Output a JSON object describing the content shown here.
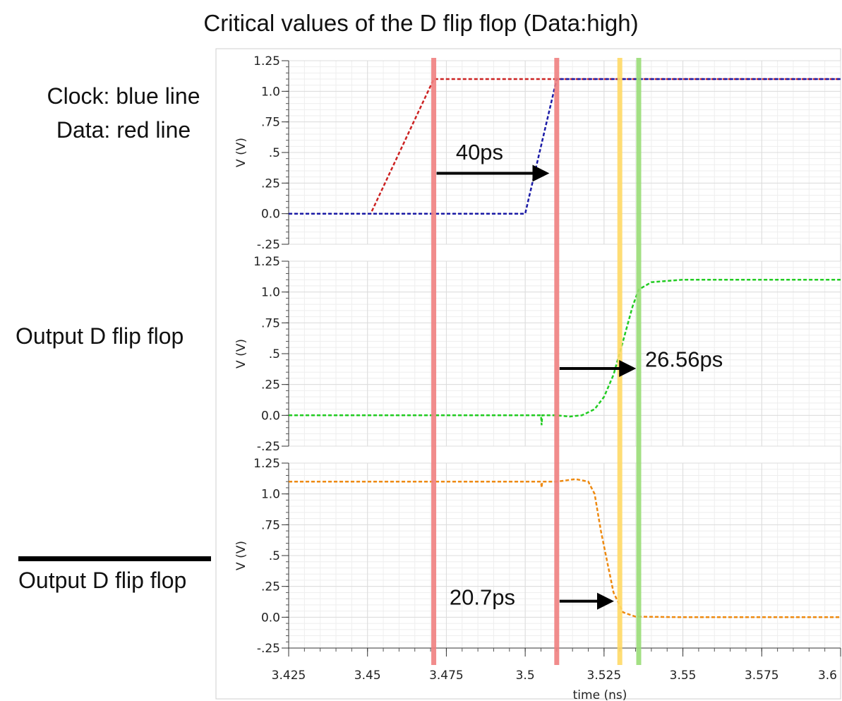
{
  "title": "Critical values of the D flip flop (Data:high)",
  "legend": {
    "clock": "Clock: blue line",
    "data": "Data: red line"
  },
  "panel_labels": {
    "output1": "Output D flip flop",
    "output2": "Output D flip flop",
    "output2_overbar": true
  },
  "colors": {
    "clock": "#1a1aa6",
    "data": "#cc2222",
    "output": "#22cc22",
    "output_bar": "#ee8a11",
    "marker_red": "#f08080",
    "marker_yellow": "#ffd966",
    "marker_green": "#99dd77",
    "grid": "#dcdcdc"
  },
  "chart_data": {
    "type": "line",
    "xlabel": "time (ns)",
    "xlim": [
      3.425,
      3.6
    ],
    "x_ticks": [
      "3.425",
      "3.45",
      "3.475",
      "3.5",
      "3.525",
      "3.55",
      "3.575",
      "3.6"
    ],
    "x_tick_values": [
      3.425,
      3.45,
      3.475,
      3.5,
      3.525,
      3.55,
      3.575,
      3.6
    ],
    "ylabel": "V (V)",
    "ylim": [
      -0.25,
      1.25
    ],
    "y_ticks": [
      "1.25",
      "1.0",
      ".75",
      ".5",
      ".25",
      "0.0",
      "-.25"
    ],
    "y_tick_values": [
      1.25,
      1.0,
      0.75,
      0.5,
      0.25,
      0.0,
      -0.25
    ],
    "grid": true,
    "panels": [
      {
        "series": [
          {
            "key": "data",
            "points": [
              [
                3.425,
                0.0
              ],
              [
                3.451,
                0.0
              ],
              [
                3.471,
                1.1
              ],
              [
                3.6,
                1.1
              ]
            ]
          },
          {
            "key": "clock",
            "points": [
              [
                3.425,
                0.0
              ],
              [
                3.5,
                0.0
              ],
              [
                3.51,
                1.1
              ],
              [
                3.6,
                1.1
              ]
            ]
          }
        ],
        "annotation": {
          "text": "40ps",
          "arrow_from": 3.471,
          "arrow_to": 3.509,
          "y": 0.33,
          "text_x": 3.478,
          "text_y": 0.5
        }
      },
      {
        "series": [
          {
            "key": "output",
            "points": [
              [
                3.425,
                0.0
              ],
              [
                3.505,
                0.0
              ],
              [
                3.5052,
                -0.08
              ],
              [
                3.5054,
                0.0
              ],
              [
                3.51,
                0.0
              ],
              [
                3.514,
                -0.01
              ],
              [
                3.518,
                0.0
              ],
              [
                3.522,
                0.05
              ],
              [
                3.525,
                0.15
              ],
              [
                3.528,
                0.33
              ],
              [
                3.531,
                0.6
              ],
              [
                3.534,
                0.88
              ],
              [
                3.536,
                1.02
              ],
              [
                3.54,
                1.08
              ],
              [
                3.55,
                1.1
              ],
              [
                3.6,
                1.1
              ]
            ]
          }
        ],
        "annotation": {
          "text": "26.56ps",
          "arrow_from": 3.51,
          "arrow_to": 3.5365,
          "y": 0.38,
          "text_x": 3.538,
          "text_y": 0.45
        }
      },
      {
        "series": [
          {
            "key": "output_bar",
            "points": [
              [
                3.425,
                1.1
              ],
              [
                3.505,
                1.1
              ],
              [
                3.5052,
                1.05
              ],
              [
                3.5054,
                1.1
              ],
              [
                3.51,
                1.1
              ],
              [
                3.516,
                1.12
              ],
              [
                3.52,
                1.1
              ],
              [
                3.522,
                1.0
              ],
              [
                3.524,
                0.7
              ],
              [
                3.526,
                0.45
              ],
              [
                3.528,
                0.2
              ],
              [
                3.531,
                0.04
              ],
              [
                3.535,
                0.005
              ],
              [
                3.55,
                0.0
              ],
              [
                3.6,
                0.0
              ]
            ]
          }
        ],
        "annotation": {
          "text": "20.7ps",
          "arrow_from": 3.51,
          "arrow_to": 3.5295,
          "y": 0.13,
          "text_x": 3.476,
          "text_y": 0.16
        }
      }
    ],
    "markers": [
      {
        "x": 3.471,
        "color_key": "marker_red"
      },
      {
        "x": 3.51,
        "color_key": "marker_red"
      },
      {
        "x": 3.53,
        "color_key": "marker_yellow"
      },
      {
        "x": 3.536,
        "color_key": "marker_green"
      }
    ]
  }
}
